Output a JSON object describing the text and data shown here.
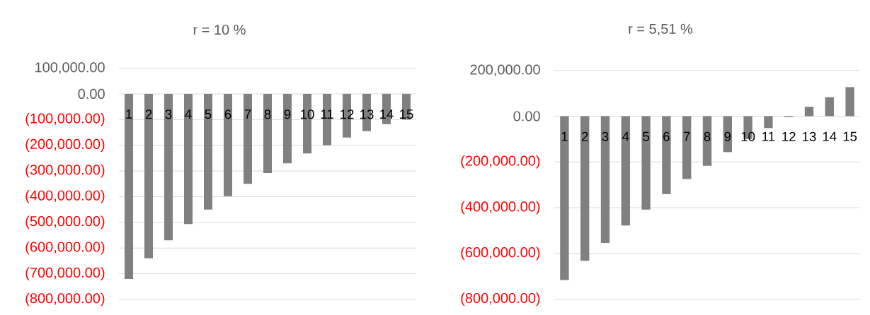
{
  "chart_data": [
    {
      "type": "bar",
      "title": "r = 10 %",
      "categories": [
        "1",
        "2",
        "3",
        "4",
        "5",
        "6",
        "7",
        "8",
        "9",
        "10",
        "11",
        "12",
        "13",
        "14",
        "15"
      ],
      "values": [
        -720000,
        -640000,
        -570000,
        -507000,
        -450000,
        -398000,
        -350000,
        -308000,
        -270000,
        -232000,
        -200000,
        -170000,
        -145000,
        -118000,
        -100000
      ],
      "color": "#808080",
      "ylim": [
        -800000,
        100000
      ],
      "yticks": [
        {
          "value": 100000,
          "label": "100,000.00"
        },
        {
          "value": 0,
          "label": "0.00"
        },
        {
          "value": -100000,
          "label": "(100,000.00)"
        },
        {
          "value": -200000,
          "label": "(200,000.00)"
        },
        {
          "value": -300000,
          "label": "(300,000.00)"
        },
        {
          "value": -400000,
          "label": "(400,000.00)"
        },
        {
          "value": -500000,
          "label": "(500,000.00)"
        },
        {
          "value": -600000,
          "label": "(600,000.00)"
        },
        {
          "value": -700000,
          "label": "(700,000.00)"
        },
        {
          "value": -800000,
          "label": "(800,000.00)"
        }
      ],
      "grid": "y"
    },
    {
      "type": "bar",
      "title": "r = 5,51 %",
      "categories": [
        "1",
        "2",
        "3",
        "4",
        "5",
        "6",
        "7",
        "8",
        "9",
        "10",
        "11",
        "12",
        "13",
        "14",
        "15"
      ],
      "values": [
        -716000,
        -632000,
        -554000,
        -478000,
        -408000,
        -340000,
        -275000,
        -217000,
        -157000,
        -100000,
        -52000,
        -4000,
        41000,
        83000,
        127000
      ],
      "color": "#808080",
      "ylim": [
        -800000,
        200000
      ],
      "yticks": [
        {
          "value": 200000,
          "label": "200,000.00"
        },
        {
          "value": 0,
          "label": "0.00"
        },
        {
          "value": -200000,
          "label": "(200,000.00)"
        },
        {
          "value": -400000,
          "label": "(400,000.00)"
        },
        {
          "value": -600000,
          "label": "(600,000.00)"
        },
        {
          "value": -800000,
          "label": "(800,000.00)"
        }
      ],
      "grid": "y"
    }
  ]
}
